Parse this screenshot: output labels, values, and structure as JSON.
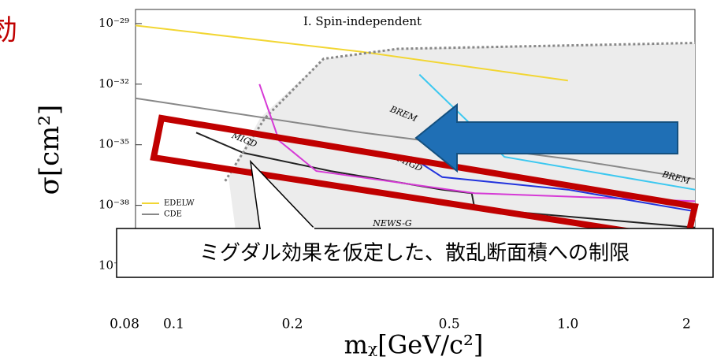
{
  "slide": {
    "heading_fragment": "効",
    "callout": "ミグダル効果を仮定した、散乱断面積への制限"
  },
  "chart_data": {
    "type": "line",
    "title": "I. Spin-independent",
    "x_label": "mᵪ[GeV/c²]",
    "y_label": "σ[cm²]",
    "log_x": true,
    "log_y": true,
    "xlim": [
      0.08,
      2.1
    ],
    "xticks": [
      0.08,
      0.1,
      0.2,
      0.5,
      {
        "value": 1,
        "label": "1.0"
      },
      2
    ],
    "ylim": [
      8e-42,
      5e-29
    ],
    "yticks": [
      {
        "value": 1e-29,
        "label": "10⁻²⁹"
      },
      {
        "value": 1e-32,
        "label": "10⁻³²"
      },
      {
        "value": 1e-35,
        "label": "10⁻³⁵"
      },
      {
        "value": 1e-38,
        "label": "10⁻³⁸"
      },
      {
        "value": 1e-41,
        "label": "10⁻⁴¹"
      }
    ],
    "annotations": [
      "MIGD",
      "MIGD",
      "BREM",
      "BREM",
      "NEWS-G"
    ],
    "series": [
      {
        "name": "EDELW",
        "color": "#f2d633",
        "x": [
          0.08,
          0.3,
          1.0
        ],
        "values": [
          8e-30,
          4e-31,
          1.5e-32
        ]
      },
      {
        "name": "CDE",
        "color": "#888888",
        "x": [
          0.08,
          0.3,
          1.0,
          2.1
        ],
        "values": [
          2e-33,
          4e-35,
          2e-36,
          2e-37
        ]
      },
      {
        "color": "#222222",
        "x": [
          0.114,
          0.15,
          0.25,
          0.48,
          0.57,
          0.58,
          2.1
        ],
        "values": [
          4e-35,
          4e-36,
          5e-37,
          6e-38,
          4e-38,
          7e-39,
          8e-40
        ]
      },
      {
        "color": "#888888",
        "style": "dotted",
        "x": [
          0.135,
          0.17,
          0.24,
          0.37,
          2.1
        ],
        "values": [
          1.6e-37,
          2e-34,
          1.8e-31,
          5.6e-31,
          1.1e-30
        ]
      },
      {
        "color": "#d63ad6",
        "x": [
          0.165,
          0.185,
          0.23,
          0.58,
          2.1
        ],
        "values": [
          1e-32,
          1.6e-35,
          5e-37,
          4e-38,
          1.6e-38
        ]
      },
      {
        "color": "#3cc8f0",
        "x": [
          0.42,
          0.69,
          2.1
        ],
        "values": [
          3e-32,
          2.5e-36,
          6e-38
        ]
      },
      {
        "color": "#2233dd",
        "x": [
          0.4,
          0.48,
          1.0,
          2.1
        ],
        "values": [
          2.5e-36,
          2.5e-37,
          6e-38,
          5e-39
        ]
      }
    ]
  }
}
